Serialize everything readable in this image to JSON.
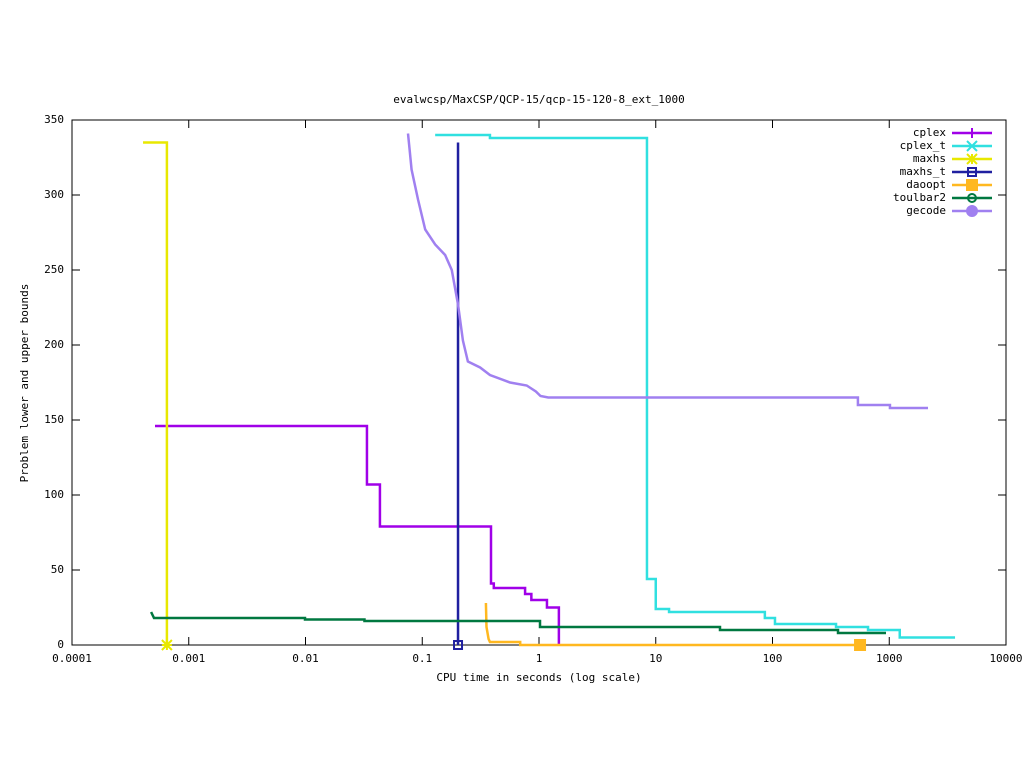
{
  "chart_data": {
    "type": "line",
    "title": "evalwcsp/MaxCSP/QCP-15/qcp-15-120-8_ext_1000",
    "x_label": "CPU time in seconds (log scale)",
    "y_label": "Problem lower and upper bounds",
    "x_log": true,
    "xlim": [
      0.0001,
      10000
    ],
    "xticks": [
      0.0001,
      0.001,
      0.01,
      0.1,
      1,
      10,
      100,
      1000,
      10000
    ],
    "ylim": [
      0,
      350
    ],
    "yticks": [
      0,
      50,
      100,
      150,
      200,
      250,
      300,
      350
    ],
    "legend_position": "top-right",
    "series": [
      {
        "name": "cplex",
        "color": "#a000e8",
        "point": "plus",
        "end_point": false,
        "x": [
          0.000514,
          0.0336,
          0.0336,
          0.0434,
          0.0434,
          0.388,
          0.388,
          0.41,
          0.41,
          0.76,
          0.76,
          0.86,
          0.86,
          1.17,
          1.17,
          1.48,
          1.48
        ],
        "y": [
          146,
          146,
          107,
          107,
          79,
          79,
          41,
          41,
          38,
          38,
          34,
          34,
          30,
          30,
          25,
          25,
          0
        ]
      },
      {
        "name": "cplex_t",
        "color": "#30e0e0",
        "point": "cross",
        "end_point": false,
        "x": [
          0.129,
          0.38,
          0.38,
          8.41,
          8.41,
          10,
          10,
          13,
          13,
          86,
          86,
          105,
          105,
          350,
          350,
          658,
          658,
          1230,
          1230,
          3660
        ],
        "y": [
          340,
          340,
          338,
          338,
          44,
          44,
          24,
          24,
          22,
          22,
          18,
          18,
          14,
          14,
          12,
          12,
          10,
          10,
          5,
          5
        ]
      },
      {
        "name": "maxhs",
        "color": "#e8e800",
        "point": "star",
        "end_point": true,
        "x": [
          0.000406,
          0.00065,
          0.00065
        ],
        "y": [
          335,
          335,
          0
        ]
      },
      {
        "name": "maxhs_t",
        "color": "#2020a0",
        "point": "square",
        "end_point": true,
        "x": [
          0.2025,
          0.2025
        ],
        "y": [
          335,
          0
        ]
      },
      {
        "name": "daoopt",
        "color": "#ffb820",
        "point": "filled-square",
        "end_point": true,
        "x": [
          0.351,
          0.355,
          0.37,
          0.38,
          0.69,
          0.69,
          562
        ],
        "y": [
          28,
          12,
          4,
          2,
          2,
          0,
          0
        ]
      },
      {
        "name": "toulbar2",
        "color": "#007840",
        "point": "circle",
        "end_point": false,
        "x": [
          0.000476,
          0.000504,
          0.0099,
          0.0099,
          0.032,
          0.032,
          1.02,
          1.02,
          35.5,
          35.5,
          364,
          364,
          938
        ],
        "y": [
          22,
          18,
          18,
          17,
          17,
          16,
          16,
          12,
          12,
          10,
          10,
          8,
          8
        ]
      },
      {
        "name": "gecode",
        "color": "#a080f0",
        "point": "filled-circle",
        "end_point": false,
        "x": [
          0.0755,
          0.078,
          0.081,
          0.092,
          0.106,
          0.129,
          0.157,
          0.179,
          0.2025,
          0.223,
          0.246,
          0.313,
          0.38,
          0.565,
          0.785,
          0.94,
          1.03,
          1.2,
          539,
          539,
          1014,
          1014,
          2148
        ],
        "y": [
          341,
          330,
          317,
          297,
          277,
          267,
          260,
          250,
          227,
          203,
          189,
          185,
          180,
          175,
          173,
          169,
          166,
          165,
          165,
          160,
          160,
          158,
          158
        ]
      }
    ]
  }
}
